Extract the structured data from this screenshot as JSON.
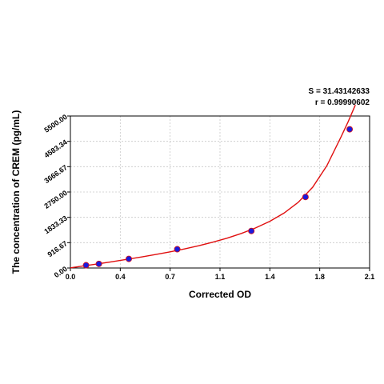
{
  "chart_data": {
    "type": "scatter",
    "xlabel": "Corrected OD",
    "ylabel": "The concentration of CREM (pg/mL)",
    "xlim": [
      0.0,
      2.1
    ],
    "ylim": [
      0.0,
      5500.0
    ],
    "x_ticks": [
      "0.0",
      "0.4",
      "0.7",
      "1.1",
      "1.4",
      "1.8",
      "2.1"
    ],
    "x_tick_values": [
      0.0,
      0.35,
      0.7,
      1.05,
      1.4,
      1.75,
      2.1
    ],
    "y_ticks": [
      "0.00",
      "916.67",
      "1833.33",
      "2750.00",
      "3666.67",
      "4583.34",
      "5500.00"
    ],
    "y_tick_values": [
      0,
      916.67,
      1833.33,
      2750.0,
      3666.67,
      4583.34,
      5500.0
    ],
    "grid": true,
    "points": {
      "x": [
        0.11,
        0.2,
        0.41,
        0.75,
        1.27,
        1.65,
        1.96
      ],
      "y": [
        100,
        150,
        330,
        680,
        1340,
        2570,
        5020
      ],
      "color": "#1a1adc"
    },
    "fit_curve": {
      "color": "#e01010",
      "x": [
        0.0,
        0.1,
        0.2,
        0.3,
        0.4,
        0.5,
        0.6,
        0.7,
        0.8,
        0.9,
        1.0,
        1.1,
        1.2,
        1.3,
        1.4,
        1.5,
        1.6,
        1.7,
        1.8,
        1.9,
        1.95,
        2.0
      ],
      "y": [
        5,
        80,
        155,
        235,
        315,
        400,
        490,
        585,
        690,
        805,
        935,
        1080,
        1250,
        1450,
        1690,
        1990,
        2380,
        2920,
        3700,
        4750,
        5300,
        5900
      ]
    },
    "annotations": {
      "s_value": "S = 31.43142633",
      "r_value": "r = 0.99990602"
    }
  }
}
